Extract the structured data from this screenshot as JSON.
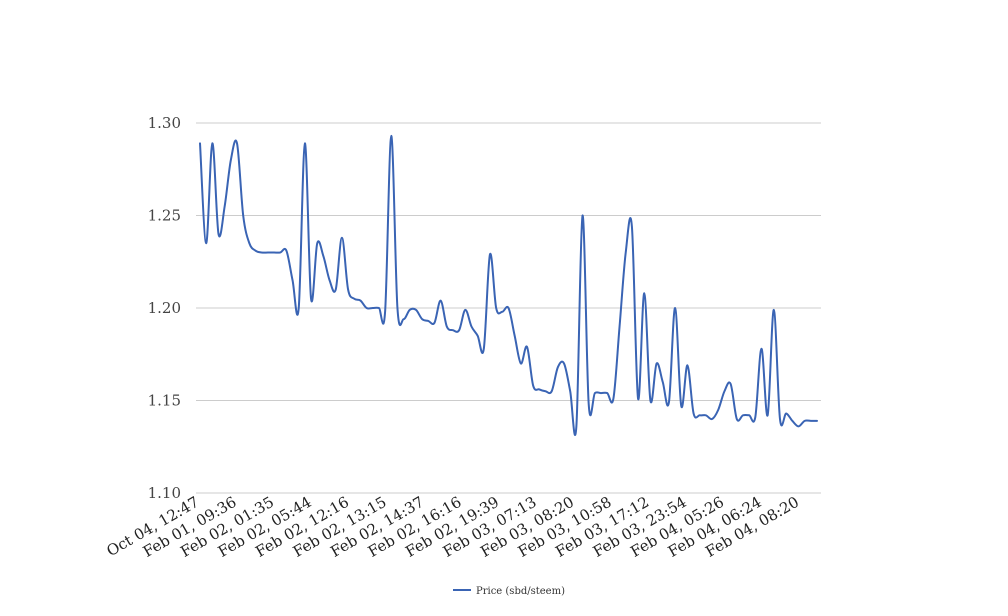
{
  "chart_data": {
    "type": "line",
    "title": "",
    "xlabel": "",
    "ylabel": "",
    "ylim": [
      1.1,
      1.3
    ],
    "yticks": [
      1.1,
      1.15,
      1.2,
      1.25,
      1.3
    ],
    "ytick_labels": [
      "1.10",
      "1.15",
      "1.20",
      "1.25",
      "1.30"
    ],
    "grid": true,
    "legend_placement": "bottom-center",
    "series_color": "#3a64b4",
    "x_tick_labels": [
      "Oct 04, 12:47",
      "Feb 01, 09:36",
      "Feb 02, 01:35",
      "Feb 02, 05:44",
      "Feb 02, 12:16",
      "Feb 02, 13:15",
      "Feb 02, 14:37",
      "Feb 02, 16:16",
      "Feb 02, 19:39",
      "Feb 03, 07:13",
      "Feb 03, 08:20",
      "Feb 03, 10:58",
      "Feb 03, 17:12",
      "Feb 03, 23:54",
      "Feb 04, 05:26",
      "Feb 04, 06:24",
      "Feb 04, 08:20"
    ],
    "series": [
      {
        "name": "Price (sbd/steem)",
        "values": [
          1.289,
          1.235,
          1.289,
          1.24,
          1.255,
          1.28,
          1.289,
          1.25,
          1.235,
          1.231,
          1.23,
          1.23,
          1.23,
          1.23,
          1.231,
          1.215,
          1.2,
          1.289,
          1.205,
          1.235,
          1.228,
          1.215,
          1.21,
          1.238,
          1.21,
          1.205,
          1.204,
          1.2,
          1.2,
          1.2,
          1.198,
          1.293,
          1.2,
          1.194,
          1.199,
          1.199,
          1.194,
          1.193,
          1.192,
          1.204,
          1.19,
          1.188,
          1.188,
          1.199,
          1.19,
          1.185,
          1.178,
          1.229,
          1.2,
          1.198,
          1.2,
          1.185,
          1.17,
          1.179,
          1.158,
          1.156,
          1.155,
          1.155,
          1.168,
          1.17,
          1.155,
          1.136,
          1.25,
          1.148,
          1.154,
          1.154,
          1.154,
          1.151,
          1.19,
          1.23,
          1.244,
          1.151,
          1.208,
          1.15,
          1.17,
          1.16,
          1.149,
          1.2,
          1.147,
          1.169,
          1.143,
          1.142,
          1.142,
          1.14,
          1.145,
          1.155,
          1.159,
          1.14,
          1.142,
          1.142,
          1.141,
          1.178,
          1.142,
          1.199,
          1.14,
          1.143,
          1.139,
          1.136,
          1.139,
          1.139,
          1.139
        ]
      }
    ]
  }
}
